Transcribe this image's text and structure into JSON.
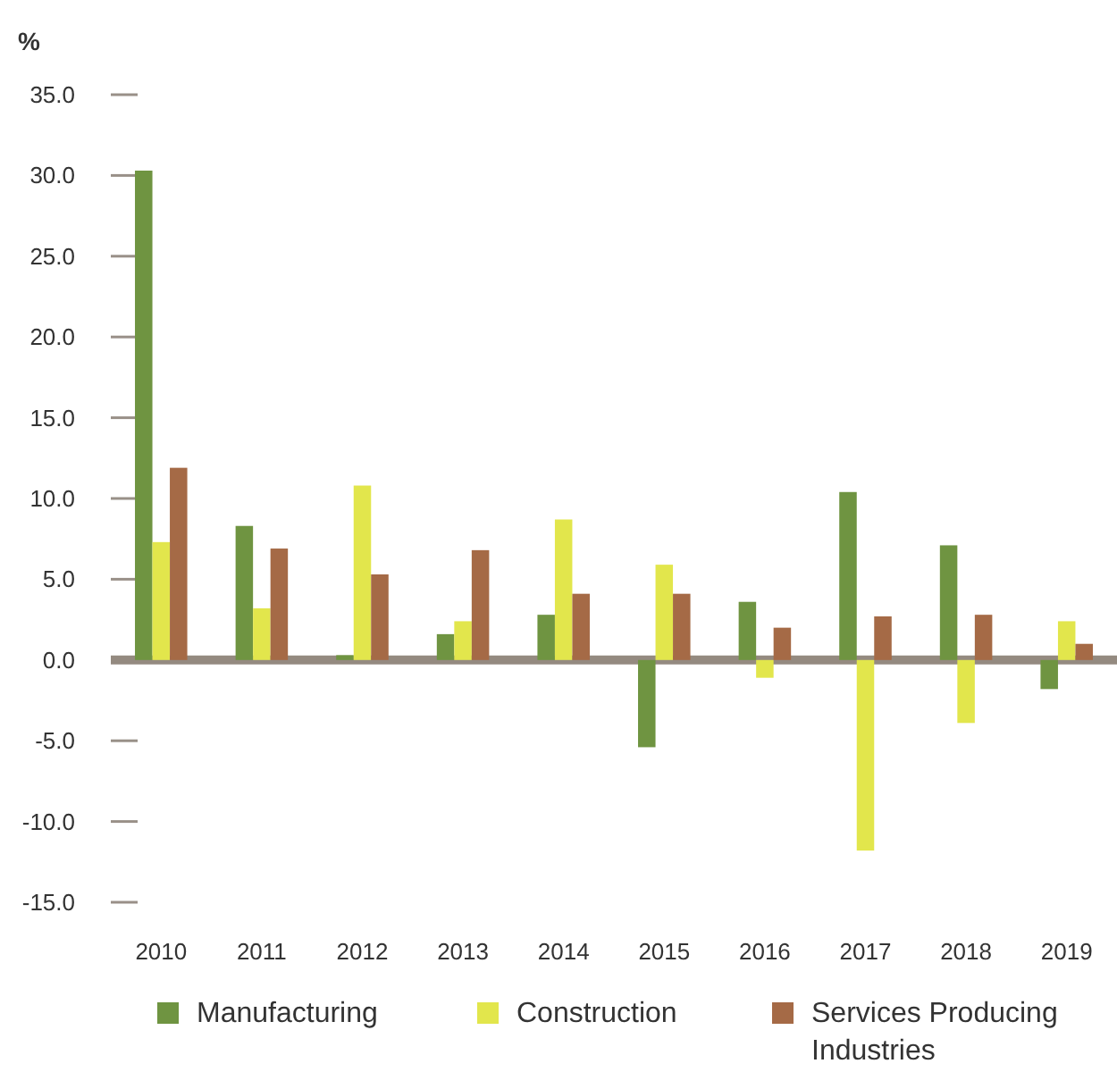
{
  "chart_data": {
    "type": "bar",
    "ylabel": "%",
    "categories": [
      "2010",
      "2011",
      "2012",
      "2013",
      "2014",
      "2015",
      "2016",
      "2017",
      "2018",
      "2019"
    ],
    "series": [
      {
        "name": "Manufacturing",
        "color": "#6f9441",
        "values": [
          30.3,
          8.3,
          0.3,
          1.6,
          2.8,
          -5.4,
          3.6,
          10.4,
          7.1,
          -1.8
        ]
      },
      {
        "name": "Construction",
        "color": "#e2e64c",
        "values": [
          7.3,
          3.2,
          10.8,
          2.4,
          8.7,
          5.9,
          -1.1,
          -11.8,
          -3.9,
          2.4
        ]
      },
      {
        "name": "Services Producing Industries",
        "color": "#a56a46",
        "values": [
          11.9,
          6.9,
          5.3,
          6.8,
          4.1,
          4.1,
          2.0,
          2.7,
          2.8,
          1.0
        ]
      }
    ],
    "ylim": [
      -15,
      35
    ],
    "yticks": [
      {
        "value": -15,
        "label": "-15.0"
      },
      {
        "value": -10,
        "label": "-10.0"
      },
      {
        "value": -5,
        "label": "-5.0"
      },
      {
        "value": 0,
        "label": "0.0"
      },
      {
        "value": 5,
        "label": "5.0"
      },
      {
        "value": 10,
        "label": "10.0"
      },
      {
        "value": 15,
        "label": "15.0"
      },
      {
        "value": 20,
        "label": "20.0"
      },
      {
        "value": 25,
        "label": "25.0"
      },
      {
        "value": 30,
        "label": "30.0"
      },
      {
        "value": 35,
        "label": "35.0"
      }
    ],
    "grid": "y",
    "legend": "bottom"
  }
}
